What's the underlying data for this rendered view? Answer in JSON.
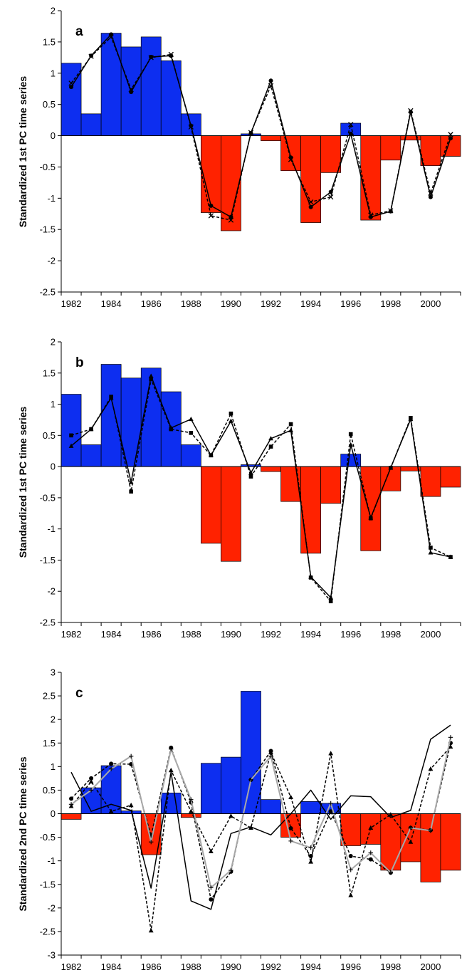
{
  "chart_data": [
    {
      "type": "bar",
      "panel_label": "a",
      "ylabel": "Standardized 1st PC time series",
      "xlabel": "",
      "x": [
        1982,
        1983,
        1984,
        1985,
        1986,
        1987,
        1988,
        1989,
        1990,
        1991,
        1992,
        1993,
        1994,
        1995,
        1996,
        1997,
        1998,
        1999,
        2000,
        2001
      ],
      "x_tick_labels": [
        "1982",
        "1984",
        "1986",
        "1988",
        "1990",
        "1992",
        "1994",
        "1996",
        "1998",
        "2000"
      ],
      "ylim": [
        -2.5,
        2
      ],
      "y_ticks": [
        -2.5,
        -2,
        -1.5,
        -1,
        -0.5,
        0,
        0.5,
        1,
        1.5,
        2
      ],
      "y_tick_labels": [
        "-2.5",
        "-2",
        "-1.5",
        "-1",
        "-0.5",
        "0",
        "0.5",
        "1",
        "1.5",
        "2"
      ],
      "grid": false,
      "colors": {
        "positive": "#0d2ef0",
        "negative": "#ff2200"
      },
      "bars": [
        1.16,
        0.35,
        1.64,
        1.42,
        1.58,
        1.2,
        0.35,
        -1.23,
        -1.52,
        0.03,
        -0.08,
        -0.56,
        -1.39,
        -0.59,
        0.2,
        -1.35,
        -0.39,
        -0.07,
        -0.48,
        -0.33
      ],
      "series": [
        {
          "style": "solid",
          "color": "#000000",
          "marker": "circle",
          "values": [
            0.78,
            1.28,
            1.62,
            0.7,
            1.26,
            1.28,
            0.16,
            -1.12,
            -1.3,
            0.04,
            0.88,
            -0.35,
            -1.14,
            -0.9,
            0.03,
            -1.3,
            -1.21,
            0.38,
            -0.98,
            -0.04
          ]
        },
        {
          "style": "dashed",
          "color": "#000000",
          "marker": "x",
          "values": [
            0.84,
            1.27,
            1.58,
            0.74,
            1.25,
            1.3,
            0.14,
            -1.28,
            -1.35,
            0.05,
            0.8,
            -0.38,
            -1.06,
            -0.98,
            0.18,
            -1.27,
            -1.2,
            0.4,
            -0.92,
            0.02
          ]
        }
      ]
    },
    {
      "type": "bar",
      "panel_label": "b",
      "ylabel": "Standardized 1st PC time series",
      "xlabel": "",
      "x": [
        1982,
        1983,
        1984,
        1985,
        1986,
        1987,
        1988,
        1989,
        1990,
        1991,
        1992,
        1993,
        1994,
        1995,
        1996,
        1997,
        1998,
        1999,
        2000,
        2001
      ],
      "x_tick_labels": [
        "1982",
        "1984",
        "1986",
        "1988",
        "1990",
        "1992",
        "1994",
        "1996",
        "1998",
        "2000"
      ],
      "ylim": [
        -2.5,
        2
      ],
      "y_ticks": [
        -2.5,
        -2,
        -1.5,
        -1,
        -0.5,
        0,
        0.5,
        1,
        1.5,
        2
      ],
      "y_tick_labels": [
        "-2.5",
        "-2",
        "-1.5",
        "-1",
        "-0.5",
        "0",
        "0.5",
        "1",
        "1.5",
        "2"
      ],
      "grid": false,
      "colors": {
        "positive": "#0d2ef0",
        "negative": "#ff2200"
      },
      "bars": [
        1.16,
        0.35,
        1.64,
        1.42,
        1.58,
        1.2,
        0.35,
        -1.23,
        -1.52,
        0.03,
        -0.08,
        -0.56,
        -1.39,
        -0.59,
        0.2,
        -1.35,
        -0.39,
        -0.07,
        -0.48,
        -0.33
      ],
      "series": [
        {
          "style": "solid",
          "color": "#000000",
          "marker": "triangle",
          "values": [
            0.33,
            0.6,
            1.1,
            -0.25,
            1.45,
            0.62,
            0.76,
            0.18,
            0.73,
            -0.1,
            0.45,
            0.58,
            -1.77,
            -2.1,
            0.35,
            -0.82,
            -0.02,
            0.76,
            -1.38,
            -1.45
          ]
        },
        {
          "style": "dashed",
          "color": "#000000",
          "marker": "square",
          "values": [
            0.5,
            0.6,
            1.12,
            -0.4,
            1.4,
            0.6,
            0.54,
            0.18,
            0.85,
            -0.16,
            0.32,
            0.68,
            -1.78,
            -2.16,
            0.52,
            -0.83,
            -0.02,
            0.78,
            -1.3,
            -1.45
          ]
        }
      ]
    },
    {
      "type": "bar",
      "panel_label": "c",
      "ylabel": "Standardized 2nd PC time series",
      "xlabel": "",
      "x": [
        1982,
        1983,
        1984,
        1985,
        1986,
        1987,
        1988,
        1989,
        1990,
        1991,
        1992,
        1993,
        1994,
        1995,
        1996,
        1997,
        1998,
        1999,
        2000,
        2001
      ],
      "x_tick_labels": [
        "1982",
        "1984",
        "1986",
        "1988",
        "1990",
        "1992",
        "1994",
        "1996",
        "1998",
        "2000"
      ],
      "ylim": [
        -3,
        3
      ],
      "y_ticks": [
        -3,
        -2.5,
        -2,
        -1.5,
        -1,
        -0.5,
        0,
        0.5,
        1,
        1.5,
        2,
        2.5,
        3
      ],
      "y_tick_labels": [
        "-3",
        "-2.5",
        "-2",
        "-1.5",
        "-1",
        "-0.5",
        "0",
        "0.5",
        "1",
        "1.5",
        "2",
        "2.5",
        "3"
      ],
      "grid": false,
      "colors": {
        "positive": "#0d2ef0",
        "negative": "#ff2200"
      },
      "bars": [
        -0.12,
        0.55,
        1.02,
        0.06,
        -0.87,
        0.44,
        -0.08,
        1.07,
        1.2,
        2.6,
        0.3,
        -0.5,
        0.26,
        0.22,
        -0.68,
        -0.65,
        -1.2,
        -1.02,
        -1.45,
        -1.2
      ],
      "series": [
        {
          "style": "solid",
          "color": "#000000",
          "marker": "none",
          "values": [
            0.88,
            0.05,
            0.2,
            0.07,
            -1.58,
            0.88,
            -1.85,
            -2.03,
            -0.42,
            -0.28,
            -0.45,
            0.0,
            0.5,
            -0.12,
            0.38,
            0.36,
            -0.08,
            0.07,
            1.58,
            1.88
          ]
        },
        {
          "style": "dashed",
          "color": "#000000",
          "marker": "circle",
          "values": [
            0.32,
            0.75,
            1.06,
            1.05,
            -0.47,
            1.4,
            0.24,
            -1.82,
            -1.23,
            0.72,
            1.33,
            -0.31,
            -0.9,
            0.05,
            -0.9,
            -0.97,
            -1.25,
            -0.3,
            -0.35,
            1.5
          ]
        },
        {
          "style": "dashed",
          "color": "#000000",
          "marker": "triangle",
          "values": [
            0.16,
            0.68,
            0.05,
            0.18,
            -2.48,
            0.92,
            0.05,
            -0.8,
            -0.05,
            -0.3,
            1.3,
            0.35,
            -1.02,
            1.28,
            -1.73,
            -0.3,
            -0.02,
            -0.6,
            0.95,
            1.42
          ]
        },
        {
          "style": "solid",
          "color": "#a8a8a8",
          "marker": "plus",
          "values": [
            0.2,
            0.5,
            0.95,
            1.22,
            -0.6,
            1.37,
            0.3,
            -1.57,
            -1.2,
            0.72,
            1.22,
            -0.58,
            -0.72,
            0.22,
            -1.19,
            -0.83,
            -1.25,
            -0.3,
            -0.36,
            1.62
          ]
        }
      ]
    }
  ]
}
